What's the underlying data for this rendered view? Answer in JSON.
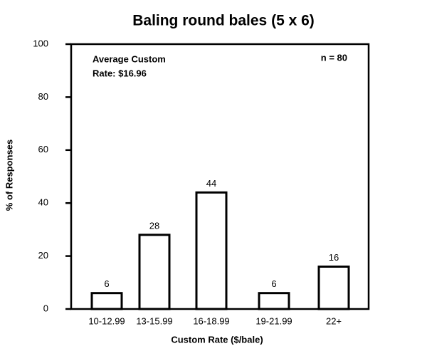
{
  "chart_data": {
    "type": "bar",
    "title": "Baling round bales (5 x 6)",
    "x_label": "Custom Rate ($/bale)",
    "y_label": "% of Responses",
    "annotations": [
      "Average Custom",
      "Rate: $16.96",
      "n = 80"
    ],
    "categories": [
      "10-12.99",
      "13-15.99",
      "16-18.99",
      "19-21.99",
      "22+"
    ],
    "values": [
      6,
      28,
      44,
      6,
      16
    ],
    "color": "#ffffff",
    "ylim": [
      0,
      100
    ],
    "yticks": [
      0,
      20,
      40,
      60,
      80,
      100
    ],
    "grid": false
  }
}
